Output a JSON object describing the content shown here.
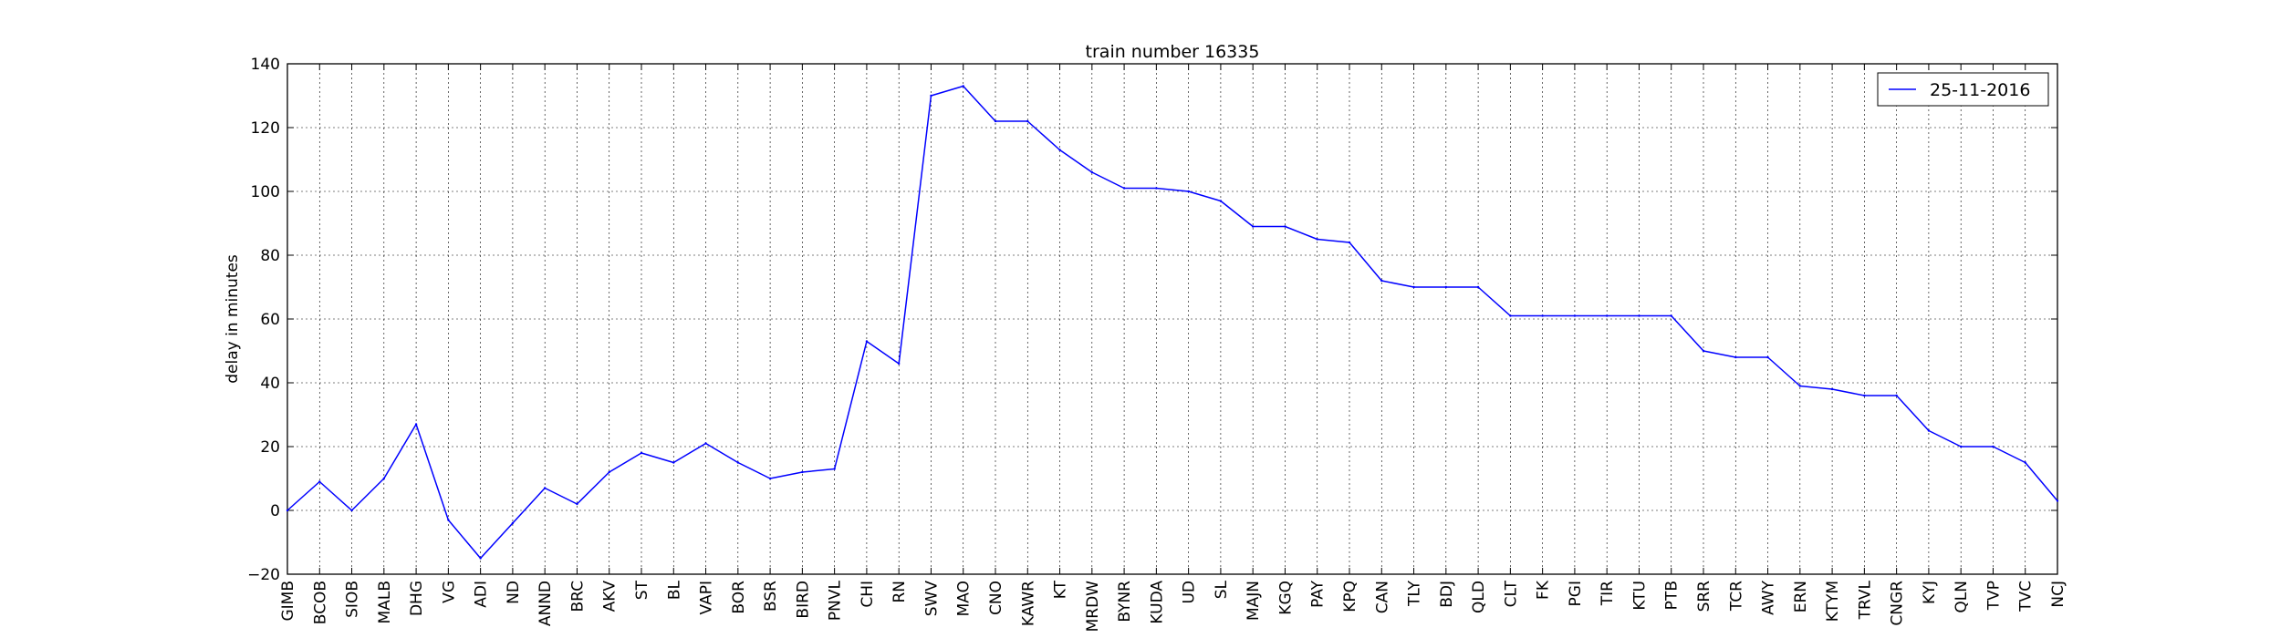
{
  "chart_data": {
    "type": "line",
    "title": "train number 16335",
    "xlabel": "",
    "ylabel": "delay in minutes",
    "ylim": [
      -20,
      140
    ],
    "yticks": [
      -20,
      0,
      20,
      40,
      60,
      80,
      100,
      120,
      140
    ],
    "grid": true,
    "legend_position": "top-right",
    "categories": [
      "GIMB",
      "BCOB",
      "SIOB",
      "MALB",
      "DHG",
      "VG",
      "ADI",
      "ND",
      "ANND",
      "BRC",
      "AKV",
      "ST",
      "BL",
      "VAPI",
      "BOR",
      "BSR",
      "BIRD",
      "PNVL",
      "CHI",
      "RN",
      "SWV",
      "MAO",
      "CNO",
      "KAWR",
      "KT",
      "MRDW",
      "BYNR",
      "KUDA",
      "UD",
      "SL",
      "MAJN",
      "KGQ",
      "PAY",
      "KPQ",
      "CAN",
      "TLY",
      "BDJ",
      "QLD",
      "CLT",
      "FK",
      "PGI",
      "TIR",
      "KTU",
      "PTB",
      "SRR",
      "TCR",
      "AWY",
      "ERN",
      "KTYM",
      "TRVL",
      "CNGR",
      "KYJ",
      "QLN",
      "TVP",
      "TVC",
      "NCJ"
    ],
    "series": [
      {
        "name": "25-11-2016",
        "color": "#0000ff",
        "values": [
          0,
          9,
          0,
          10,
          27,
          -3,
          -15,
          -4,
          7,
          2,
          12,
          18,
          15,
          21,
          15,
          10,
          12,
          13,
          53,
          46,
          130,
          133,
          122,
          122,
          113,
          106,
          101,
          101,
          100,
          97,
          89,
          89,
          85,
          84,
          72,
          70,
          70,
          70,
          61,
          61,
          61,
          61,
          61,
          61,
          50,
          48,
          48,
          39,
          38,
          36,
          36,
          25,
          20,
          20,
          15,
          3
        ]
      }
    ]
  }
}
